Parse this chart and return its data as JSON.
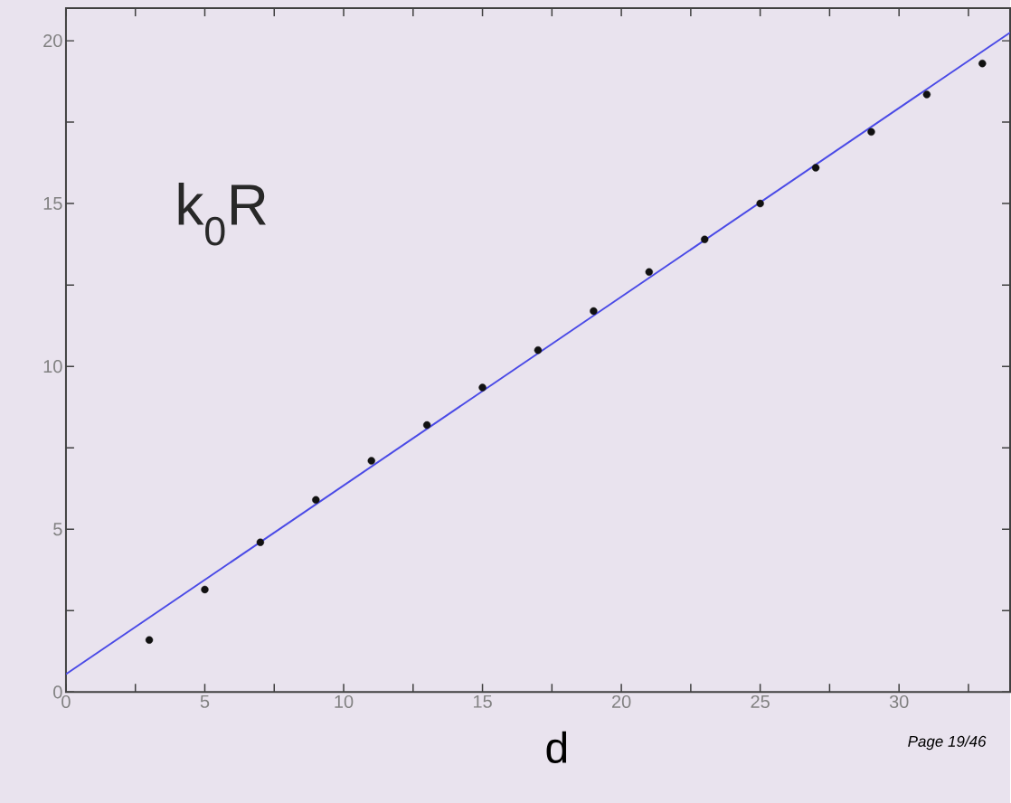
{
  "chart_data": {
    "type": "scatter",
    "xlabel": "d",
    "annotations": [
      "k$_{0}$R",
      "*Page 19/46*"
    ],
    "xlim": [
      0,
      34
    ],
    "ylim": [
      0,
      21
    ],
    "xticks": [
      0,
      {
        "value": 2.5,
        "label": null
      },
      5,
      {
        "value": 7.5,
        "label": null
      },
      10,
      {
        "value": 12.5,
        "label": null
      },
      15,
      {
        "value": 17.5,
        "label": null
      },
      20,
      {
        "value": 22.5,
        "label": null
      },
      25,
      {
        "value": 27.5,
        "label": null
      },
      30,
      {
        "value": 32.5,
        "label": null
      }
    ],
    "yticks": [
      0,
      {
        "value": 2.5,
        "label": null
      },
      5,
      {
        "value": 7.5,
        "label": null
      },
      10,
      {
        "value": 12.5,
        "label": null
      },
      15,
      {
        "value": 17.5,
        "label": null
      },
      20
    ],
    "series": [
      {
        "color": "#111111",
        "marker": "circle",
        "x": [
          3,
          5,
          7,
          9,
          11,
          13,
          15,
          17,
          19,
          21,
          23,
          25,
          27,
          29,
          31,
          33
        ],
        "values": [
          1.6,
          3.15,
          4.6,
          5.9,
          7.1,
          8.2,
          9.35,
          10.5,
          11.7,
          12.9,
          13.9,
          15.0,
          16.1,
          17.2,
          18.35,
          19.3
        ]
      },
      {
        "type": "line",
        "color": "#4a4ae6",
        "marker": "none",
        "line_style": "solid",
        "x": [
          0,
          34
        ],
        "values": [
          0.55,
          20.25
        ]
      }
    ]
  }
}
